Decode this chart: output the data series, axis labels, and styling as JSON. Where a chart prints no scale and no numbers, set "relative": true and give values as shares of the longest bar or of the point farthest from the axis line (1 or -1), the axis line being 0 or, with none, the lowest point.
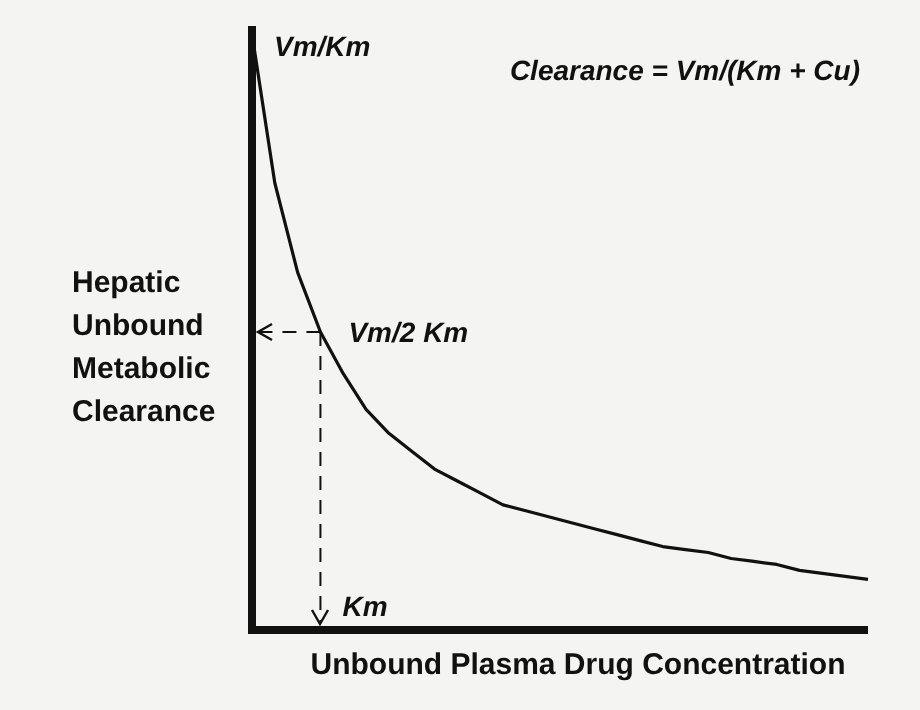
{
  "chart_data": {
    "type": "line",
    "relative": true,
    "xlabel": "Unbound Plasma Drug Concentration",
    "ylabel": "Hepatic Unbound Metabolic Clearance",
    "categories": [
      null,
      null,
      null,
      null,
      null,
      null,
      null,
      null,
      null,
      null,
      null,
      null,
      null,
      null,
      null,
      null,
      null,
      null,
      null,
      null,
      null,
      null,
      null,
      null,
      null,
      null,
      null,
      null
    ],
    "series": [
      {
        "color": "#111111",
        "values": [
          1,
          0.75,
          0.6,
          0.5,
          0.43,
          0.37,
          0.33,
          0.3,
          0.27,
          0.25,
          0.23,
          0.21,
          0.2,
          0.19,
          0.18,
          0.17,
          0.16,
          0.15,
          0.14,
          0.135,
          0.13,
          0.12,
          0.115,
          0.11,
          0.1,
          0.095,
          0.09,
          0.085
        ]
      }
    ],
    "ref_lines": [
      {
        "axis": "y",
        "value": 0.5,
        "label": "Vm/2 Km",
        "line_style": "dashed"
      }
    ],
    "annotations": [
      "Vm/Km",
      "Km",
      "Clearance = Vm/(Km + Cu)"
    ],
    "marker": "none",
    "line_style": "solid",
    "legend": false
  }
}
